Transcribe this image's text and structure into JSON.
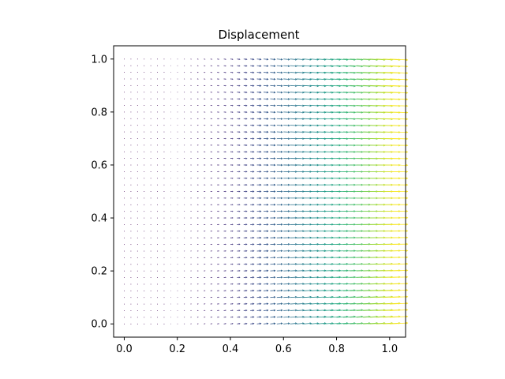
{
  "chart_data": {
    "type": "quiver",
    "title": "Displacement",
    "xlabel": "",
    "ylabel": "",
    "xlim": [
      -0.04,
      1.06
    ],
    "ylim": [
      -0.05,
      1.05
    ],
    "xticks": [
      0.0,
      0.2,
      0.4,
      0.6,
      0.8,
      1.0
    ],
    "xtick_labels": [
      "0.0",
      "0.2",
      "0.4",
      "0.6",
      "0.8",
      "1.0"
    ],
    "yticks": [
      0.0,
      0.2,
      0.4,
      0.6,
      0.8,
      1.0
    ],
    "ytick_labels": [
      "0.0",
      "0.2",
      "0.4",
      "0.6",
      "0.8",
      "1.0"
    ],
    "grid": false,
    "legend": "none",
    "colormap": "viridis",
    "grid_points": {
      "x_start": 0.0,
      "x_end": 1.0,
      "y_start": 0.0,
      "y_end": 1.0,
      "count_x": 41,
      "count_y": 41
    },
    "vector_field": {
      "u": "x^2",
      "v": "-0.1 * x * (y - 0.5)",
      "max_magnitude": 1.0,
      "arrow_length_at_max_magnitude": 0.07
    },
    "colors": {
      "axes": "#000000",
      "background": "#ffffff"
    }
  }
}
